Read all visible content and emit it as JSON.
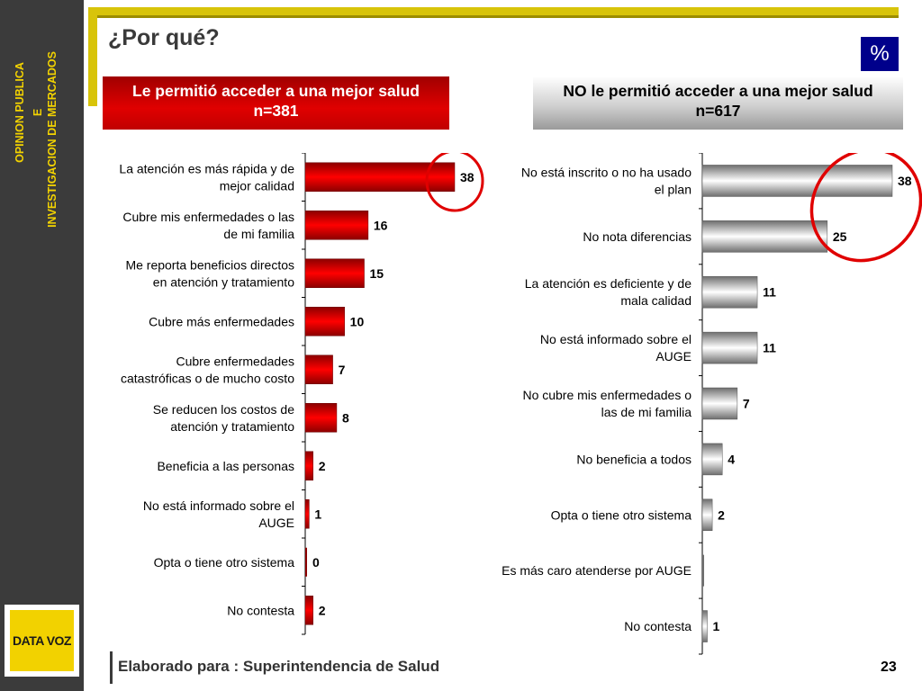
{
  "sidebar": {
    "line1": "OPINION PUBLICA",
    "line2": "E",
    "line3": "INVESTIGACION DE MERCADOS",
    "logo_text": "DATA VOZ"
  },
  "header": {
    "title": "¿Por qué?",
    "badge": "%"
  },
  "left_panel": {
    "title_line1": "Le permitió acceder a una mejor salud",
    "title_line2": "n=381"
  },
  "right_panel": {
    "title_line1": "NO le permitió acceder a una mejor salud",
    "title_line2": "n=617"
  },
  "colors": {
    "left_bar_dark": "#8b0000",
    "left_bar_light": "#ff0000",
    "right_bar_dark": "#6e6e6e",
    "right_bar_light": "#ffffff",
    "highlight_circle": "#e00000"
  },
  "chart_data": [
    {
      "type": "bar",
      "orientation": "horizontal",
      "categories": [
        "La atención es más rápida y de mejor calidad",
        "Cubre mis enfermedades o las de mi familia",
        "Me reporta beneficios directos en atención y tratamiento",
        "Cubre más enfermedades",
        "Cubre enfermedades catastróficas o de mucho costo",
        "Se reducen los costos de atención y tratamiento",
        "Beneficia a las personas",
        "No está informado sobre el AUGE",
        "Opta o tiene otro sistema",
        "No contesta"
      ],
      "values": [
        38,
        16,
        15,
        10,
        7,
        8,
        2,
        1,
        0,
        2
      ],
      "labels": [
        "38",
        "16",
        "15",
        "10",
        "7",
        "8",
        "2",
        "1",
        "0",
        "2"
      ],
      "highlighted_index": 0
    },
    {
      "type": "bar",
      "orientation": "horizontal",
      "categories": [
        "No está inscrito o no ha usado el plan",
        "No nota diferencias",
        "La atención es deficiente y de mala calidad",
        "No está informado sobre el AUGE",
        "No cubre mis enfermedades o las de mi familia",
        "No beneficia a todos",
        "Opta o tiene otro sistema",
        "Es más caro atenderse por AUGE",
        "No contesta"
      ],
      "values": [
        38,
        25,
        11,
        11,
        7,
        4,
        2,
        0,
        1
      ],
      "labels": [
        "38",
        "25",
        "11",
        "11",
        "7",
        "4",
        "2",
        "",
        "1"
      ],
      "highlighted_index": [
        0,
        1
      ]
    }
  ],
  "footer": {
    "text": "Elaborado para : Superintendencia de Salud",
    "page": "23"
  }
}
